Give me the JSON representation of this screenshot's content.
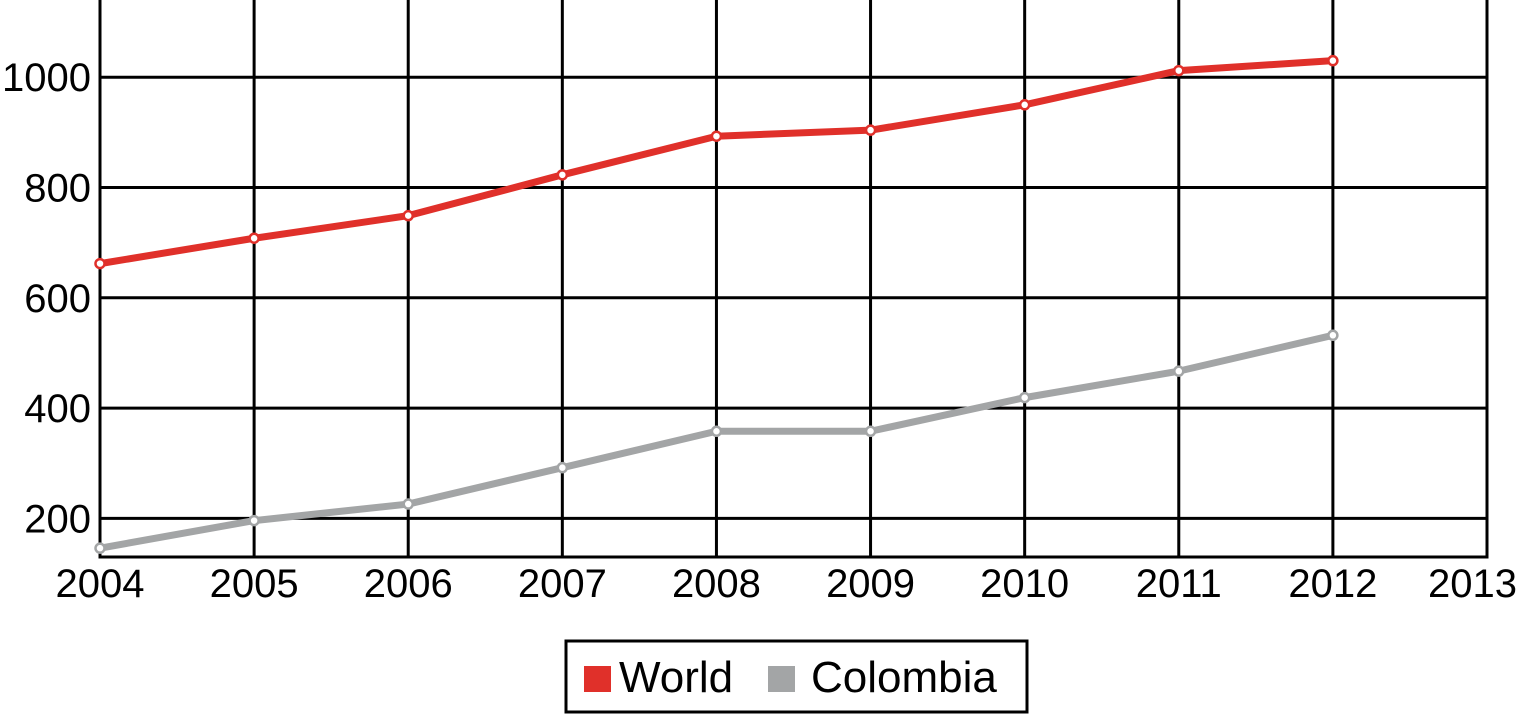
{
  "chart_data": {
    "type": "line",
    "title": "",
    "xlabel": "",
    "ylabel": "",
    "x": [
      2004,
      2005,
      2006,
      2007,
      2008,
      2009,
      2010,
      2011,
      2012
    ],
    "x_ticks": [
      "2004",
      "2005",
      "2006",
      "2007",
      "2008",
      "2009",
      "2010",
      "2011",
      "2012",
      "2013"
    ],
    "xlim": [
      2004,
      2013
    ],
    "y_ticks": [
      "200",
      "400",
      "600",
      "800",
      "1000"
    ],
    "ylim": [
      130,
      1140
    ],
    "grid": true,
    "legend_position": "bottom-center",
    "series": [
      {
        "name": "World",
        "color": "#e0302a",
        "values": [
          662,
          708,
          749,
          823,
          893,
          904,
          950,
          1012,
          1030
        ]
      },
      {
        "name": "Colombia",
        "color": "#a3a5a6",
        "values": [
          146,
          196,
          226,
          292,
          358,
          358,
          419,
          467,
          532
        ]
      }
    ]
  }
}
